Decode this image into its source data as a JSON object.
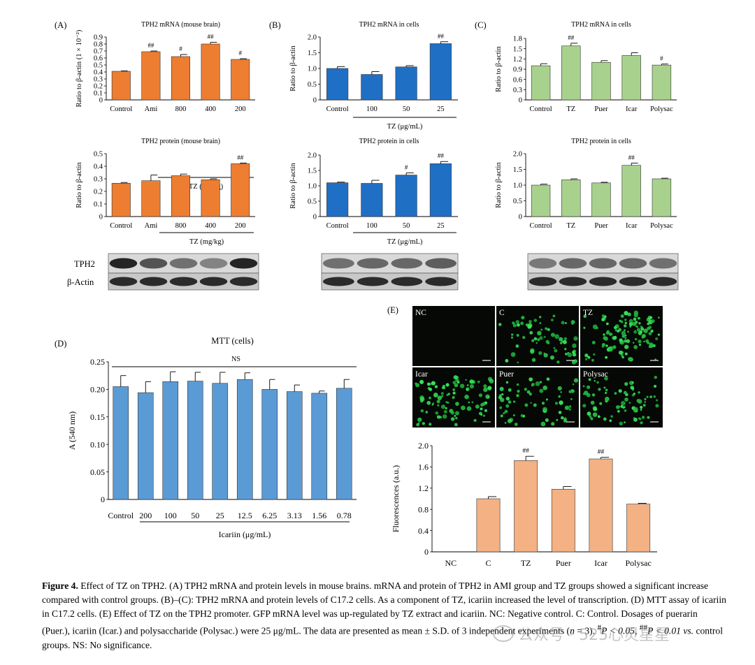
{
  "chart_data": [
    {
      "id": "A1",
      "panel_label": "(A)",
      "type": "bar",
      "title": "TPH2 mRNA (mouse brain)",
      "ylabel": "Ratio to β-actin (1 × 10⁻²)",
      "ylim": [
        0,
        0.9
      ],
      "yticks": [
        "0",
        "0.1",
        "0.2",
        "0.3",
        "0.4",
        "0.5",
        "0.6",
        "0.7",
        "0.8",
        "0.9"
      ],
      "categories": [
        "Control",
        "Ami",
        "800",
        "400",
        "200"
      ],
      "values": [
        0.41,
        0.69,
        0.62,
        0.8,
        0.58
      ],
      "errors": [
        0.005,
        0.01,
        0.03,
        0.025,
        0.01
      ],
      "annotations": [
        "",
        "##",
        "#",
        "##",
        "#"
      ],
      "group_label": "TZ (mg/kg)",
      "color": "#ED7D31"
    },
    {
      "id": "B1",
      "panel_label": "(B)",
      "type": "bar",
      "title": "TPH2 mRNA in cells",
      "ylabel": "Ratio to β-actin",
      "ylim": [
        0,
        2.0
      ],
      "yticks": [
        "0",
        "0.5",
        "1.0",
        "1.5",
        "2.0"
      ],
      "categories": [
        "Control",
        "100",
        "50",
        "25"
      ],
      "values": [
        1.0,
        0.81,
        1.05,
        1.79
      ],
      "errors": [
        0.06,
        0.09,
        0.04,
        0.06
      ],
      "annotations": [
        "",
        "",
        "",
        "##"
      ],
      "group_label": "TZ (μg/mL)",
      "color": "#1F6FC5"
    },
    {
      "id": "C1",
      "panel_label": "(C)",
      "type": "bar",
      "title": "TPH2 mRNA in cells",
      "ylabel": "Ratio to β-actin",
      "ylim": [
        0,
        1.8
      ],
      "yticks": [
        "0",
        "0.3",
        "0.6",
        "0.9",
        "1.2",
        "1.5",
        "1.8"
      ],
      "categories": [
        "Control",
        "TZ",
        "Puer",
        "Icar",
        "Polysac"
      ],
      "values": [
        1.0,
        1.58,
        1.1,
        1.3,
        1.02
      ],
      "errors": [
        0.06,
        0.08,
        0.05,
        0.08,
        0.03
      ],
      "annotations": [
        "",
        "##",
        "",
        "",
        "#"
      ],
      "group_label": "",
      "color": "#A9D18E"
    },
    {
      "id": "A2",
      "type": "bar",
      "title": "TPH2 protein (mouse brain)",
      "ylabel": "Ratio to β-actin",
      "ylim": [
        0,
        0.5
      ],
      "yticks": [
        "0",
        "0.1",
        "0.2",
        "0.3",
        "0.4",
        "0.5"
      ],
      "categories": [
        "Control",
        "Ami",
        "800",
        "400",
        "200"
      ],
      "values": [
        0.265,
        0.285,
        0.325,
        0.293,
        0.42
      ],
      "errors": [
        0.006,
        0.045,
        0.013,
        0.007,
        0.006
      ],
      "annotations": [
        "",
        "",
        "",
        "",
        "##"
      ],
      "group_label": "TZ (mg/kg)",
      "color": "#ED7D31"
    },
    {
      "id": "B2",
      "type": "bar",
      "title": "TPH2 protein in cells",
      "ylabel": "Ratio to β-actin",
      "ylim": [
        0,
        2.0
      ],
      "yticks": [
        "0",
        "0.5",
        "1.0",
        "1.5",
        "2.0"
      ],
      "categories": [
        "Control",
        "100",
        "50",
        "25"
      ],
      "values": [
        1.1,
        1.08,
        1.35,
        1.72
      ],
      "errors": [
        0.02,
        0.1,
        0.07,
        0.07
      ],
      "annotations": [
        "",
        "",
        "#",
        "##"
      ],
      "group_label": "TZ (μg/mL)",
      "color": "#1F6FC5"
    },
    {
      "id": "C2",
      "type": "bar",
      "title": "TPH2 protein in cells",
      "ylabel": "Ratio to β-actin",
      "ylim": [
        0,
        2.0
      ],
      "yticks": [
        "0",
        "0.5",
        "1.0",
        "1.5",
        "2.0"
      ],
      "categories": [
        "Control",
        "TZ",
        "Puer",
        "Icar",
        "Polysac"
      ],
      "values": [
        1.0,
        1.17,
        1.07,
        1.63,
        1.2
      ],
      "errors": [
        0.03,
        0.03,
        0.02,
        0.07,
        0.02
      ],
      "annotations": [
        "",
        "",
        "",
        "##",
        ""
      ],
      "group_label": "",
      "color": "#A9D18E"
    },
    {
      "id": "D",
      "panel_label": "(D)",
      "type": "bar",
      "title": "MTT (cells)",
      "ylabel": "A (540 nm)",
      "xlabel": "Icariin (μg/mL)",
      "ylim": [
        0,
        0.25
      ],
      "yticks": [
        "0",
        "0.05",
        "0.10",
        "0.15",
        "0.20",
        "0.25"
      ],
      "categories": [
        "Control",
        "200",
        "100",
        "50",
        "25",
        "12.5",
        "6.25",
        "3.13",
        "1.56",
        "0.78"
      ],
      "values": [
        0.205,
        0.194,
        0.214,
        0.215,
        0.211,
        0.218,
        0.2,
        0.196,
        0.193,
        0.202
      ],
      "errors": [
        0.02,
        0.02,
        0.018,
        0.016,
        0.02,
        0.012,
        0.018,
        0.012,
        0.004,
        0.016
      ],
      "annotations": [
        "",
        "",
        "",
        "",
        "",
        "",
        "",
        "",
        "",
        ""
      ],
      "significance": "NS",
      "color": "#5B9BD5"
    },
    {
      "id": "E",
      "type": "bar",
      "ylabel": "Fluorescences (a.u.)",
      "ylim": [
        0,
        2.0
      ],
      "yticks": [
        "0",
        "0.4",
        "0.8",
        "1.2",
        "1.6",
        "2.0"
      ],
      "categories": [
        "NC",
        "C",
        "TZ",
        "Puer",
        "Icar",
        "Polysac"
      ],
      "values": [
        0,
        1.0,
        1.72,
        1.18,
        1.75,
        0.9
      ],
      "errors": [
        0,
        0.04,
        0.08,
        0.05,
        0.03,
        0.015
      ],
      "annotations": [
        "",
        "",
        "##",
        "",
        "##",
        ""
      ],
      "color": "#F4B183"
    }
  ],
  "blots": {
    "labels": [
      "TPH2",
      "β-Actin"
    ]
  },
  "fluorescence": {
    "panel_label": "(E)",
    "tiles": [
      "NC",
      "C",
      "TZ",
      "Icar",
      "Puer",
      "Polysac"
    ]
  },
  "caption": {
    "figure_label": "Figure 4.",
    "text_1": " Effect of TZ on TPH2. (A) TPH2 mRNA and protein levels in mouse brains. mRNA and protein of TPH2 in AMI group and TZ groups showed a significant increase compared with control groups. (B)–(C): TPH2 mRNA and protein levels of C17.2 cells. As a component of TZ, icariin increased the level of transcription. (D) MTT assay of icariin in C17.2 cells. (E) Effect of TZ on the TPH2 promoter. GFP mRNA level was up-regulated by TZ extract and icariin. NC: Negative control. C: Control. Dosages of puerarin (Puer.), icariin (Icar.) and polysaccharide (Polysac.) were 25 μg/mL. The data are presented as mean ± S.D. of 3 independent experiments (",
    "n_label": "n",
    "text_2": " = 3). ",
    "p1_mark": "#",
    "p1_text": "P < 0.05, ",
    "p2_mark": "##",
    "p2_text": "P < 0.01 ",
    "vs_text": "vs.",
    "text_3": " control groups. NS: No significance."
  },
  "watermark": "公众号 · 525心灵星星"
}
